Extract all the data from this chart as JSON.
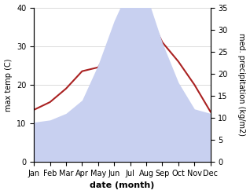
{
  "months": [
    "Jan",
    "Feb",
    "Mar",
    "Apr",
    "May",
    "Jun",
    "Jul",
    "Aug",
    "Sep",
    "Oct",
    "Nov",
    "Dec"
  ],
  "temperature": [
    13.5,
    15.5,
    19.0,
    23.5,
    24.5,
    31.0,
    33.0,
    39.5,
    31.0,
    26.0,
    20.0,
    13.0
  ],
  "precipitation": [
    9,
    9.5,
    11,
    14,
    22,
    32,
    40,
    38,
    27,
    18,
    12,
    11
  ],
  "temp_color": "#aa2222",
  "precip_fill_color": "#c8d0f0",
  "temp_ylim": [
    0,
    40
  ],
  "precip_ylim": [
    0,
    35
  ],
  "temp_yticks": [
    0,
    10,
    20,
    30,
    40
  ],
  "precip_yticks": [
    0,
    5,
    10,
    15,
    20,
    25,
    30,
    35
  ],
  "xlabel": "date (month)",
  "ylabel_left": "max temp (C)",
  "ylabel_right": "med. precipitation (kg/m2)",
  "background_color": "#ffffff",
  "grid_color": "#cccccc",
  "label_fontsize": 7,
  "xlabel_fontsize": 8,
  "tick_fontsize": 7
}
